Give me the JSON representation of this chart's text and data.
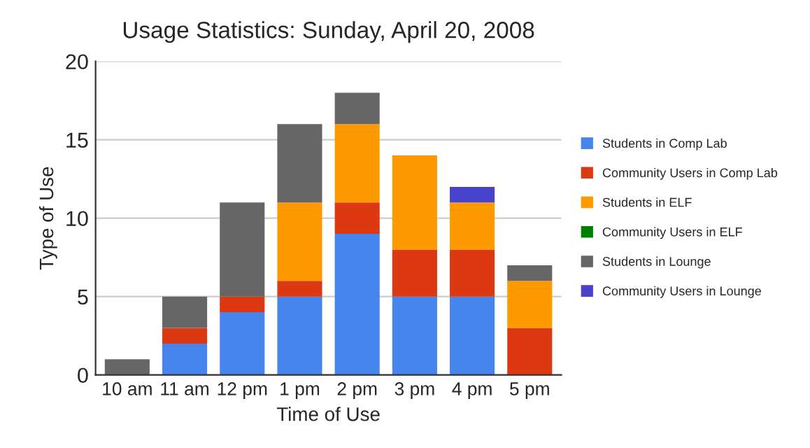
{
  "chart_data": {
    "type": "bar",
    "title": "Usage Statistics: Sunday, April 20, 2008",
    "xlabel": "Time of Use",
    "ylabel": "Type of Use",
    "categories": [
      "10 am",
      "11 am",
      "12 pm",
      "1 pm",
      "2 pm",
      "3 pm",
      "4 pm",
      "5 pm"
    ],
    "stacked": true,
    "series": [
      {
        "name": "Students in Comp Lab",
        "color": "#4684ee",
        "values": [
          0,
          2,
          4,
          5,
          9,
          5,
          5,
          0
        ]
      },
      {
        "name": "Community Users in Comp Lab",
        "color": "#dc3912",
        "values": [
          0,
          1,
          1,
          1,
          2,
          3,
          3,
          3
        ]
      },
      {
        "name": "Students in ELF",
        "color": "#ff9900",
        "values": [
          0,
          0,
          0,
          5,
          5,
          6,
          3,
          3
        ]
      },
      {
        "name": "Community Users in ELF",
        "color": "#008000",
        "values": [
          0,
          0,
          0,
          0,
          0,
          0,
          0,
          0
        ]
      },
      {
        "name": "Students in Lounge",
        "color": "#666666",
        "values": [
          1,
          2,
          6,
          5,
          2,
          0,
          0,
          1
        ]
      },
      {
        "name": "Community Users in Lounge",
        "color": "#4942cc",
        "values": [
          0,
          0,
          0,
          0,
          0,
          0,
          1,
          0
        ]
      }
    ],
    "ylim": [
      0,
      20
    ],
    "yticks": [
      0,
      5,
      10,
      15,
      20
    ],
    "grid": "y",
    "legend": "right"
  }
}
